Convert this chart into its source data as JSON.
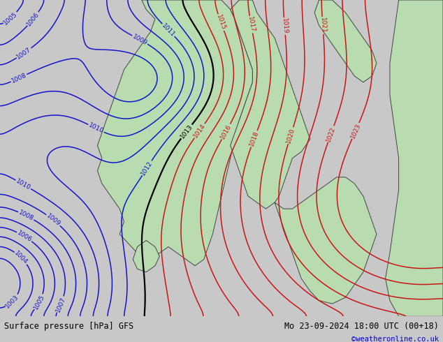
{
  "title_left": "Surface pressure [hPa] GFS",
  "title_right": "Mo 23-09-2024 18:00 UTC (00+18)",
  "credit": "©weatheronline.co.uk",
  "bg_color": "#c8c8c8",
  "land_color": "#b8dcb0",
  "sea_color": "#c8c8c8",
  "figsize": [
    6.34,
    4.9
  ],
  "dpi": 100,
  "blue_contour_color": "#1414cc",
  "red_contour_color": "#cc1414",
  "black_contour_color": "#000000",
  "black_threshold": 1013,
  "label_fontsize": 6.5,
  "footer_fontsize": 8.5,
  "credit_fontsize": 7.5,
  "credit_color": "#0000cc",
  "footer_bg": "#d8d8d8"
}
